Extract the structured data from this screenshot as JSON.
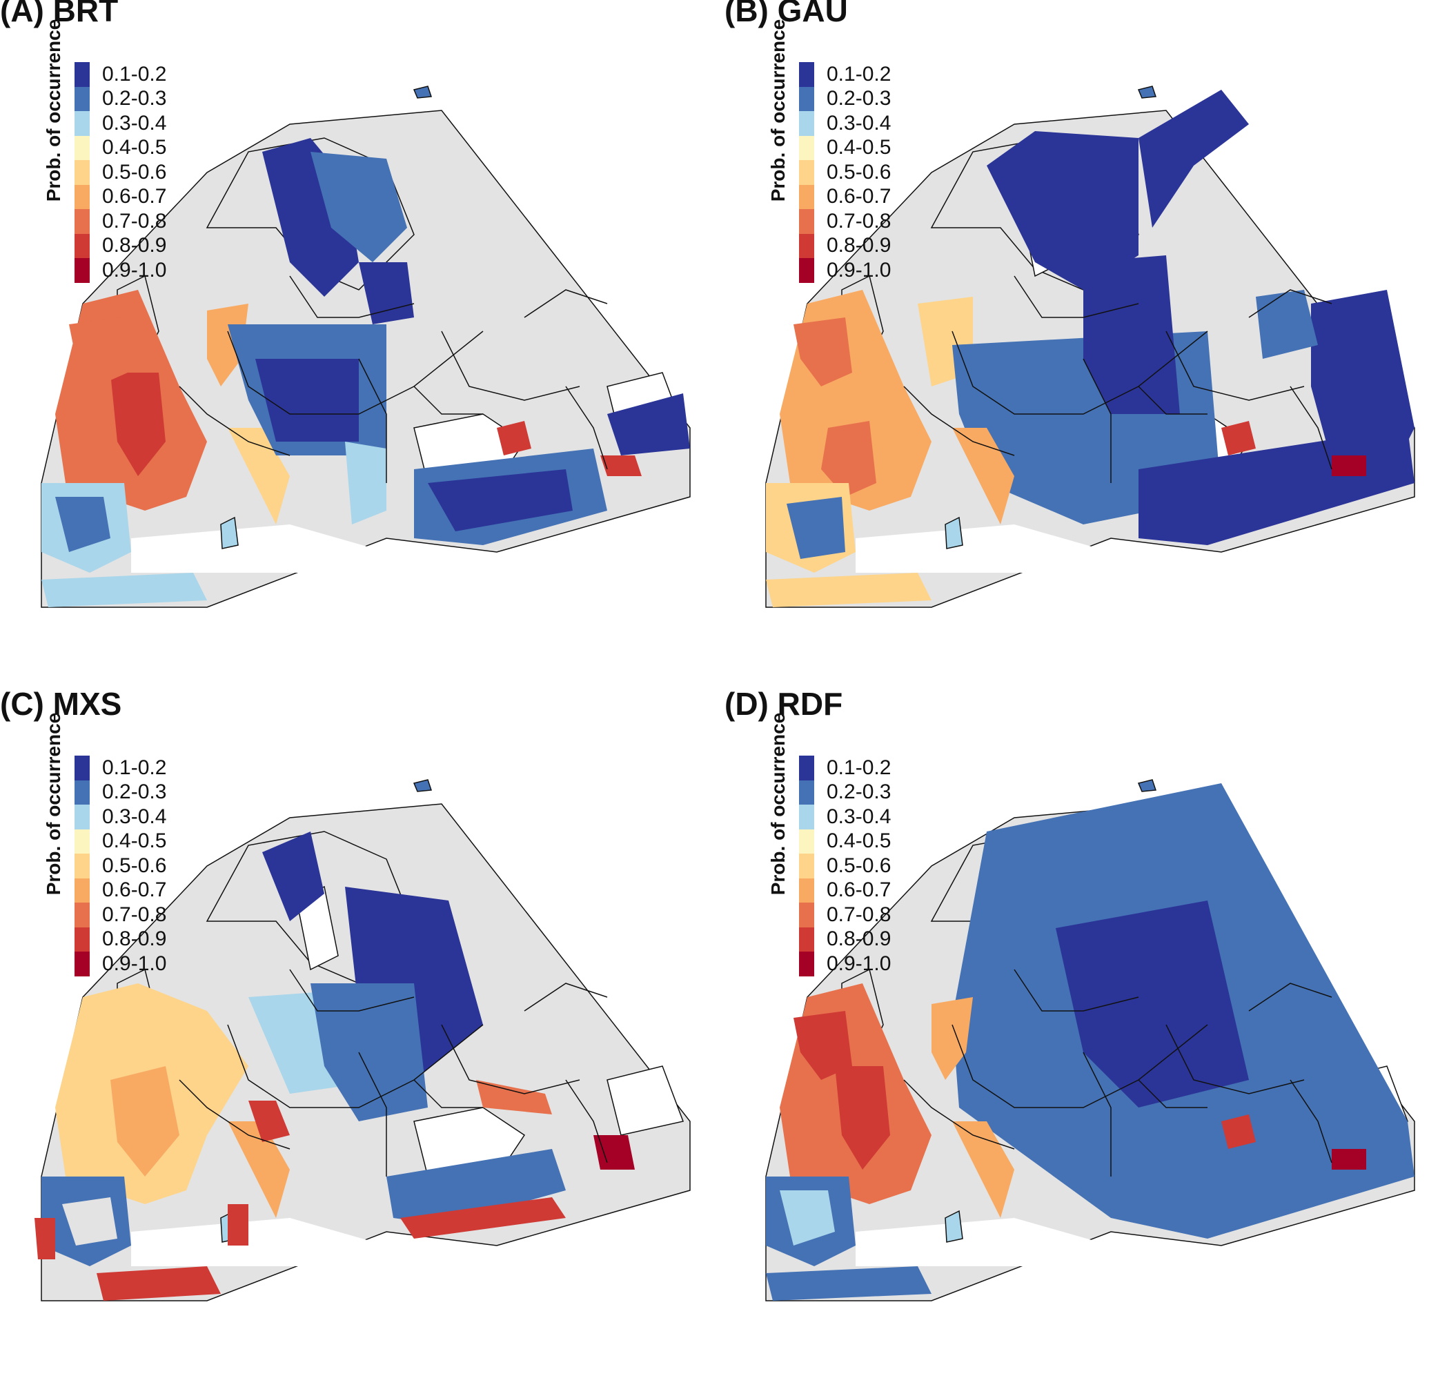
{
  "legend": {
    "title": "Prob. of occurrence",
    "classes": [
      {
        "label": "0.1-0.2",
        "color": "#2b3497"
      },
      {
        "label": "0.2-0.3",
        "color": "#4472b4"
      },
      {
        "label": "0.3-0.4",
        "color": "#a9d6ea"
      },
      {
        "label": "0.4-0.5",
        "color": "#fdf5bf"
      },
      {
        "label": "0.5-0.6",
        "color": "#fdd48a"
      },
      {
        "label": "0.6-0.7",
        "color": "#f8aa63"
      },
      {
        "label": "0.7-0.8",
        "color": "#e7714c"
      },
      {
        "label": "0.8-0.9",
        "color": "#cf3a35"
      },
      {
        "label": "0.9-1.0",
        "color": "#a50026"
      }
    ]
  },
  "colors": {
    "no_data": "#e3e3e3",
    "border": "#111111",
    "water": "#ffffff"
  },
  "panels": [
    {
      "id": "a",
      "title": "(A) BRT"
    },
    {
      "id": "b",
      "title": "(B) GAU"
    },
    {
      "id": "c",
      "title": "(C) MXS"
    },
    {
      "id": "d",
      "title": "(D) RDF"
    }
  ]
}
